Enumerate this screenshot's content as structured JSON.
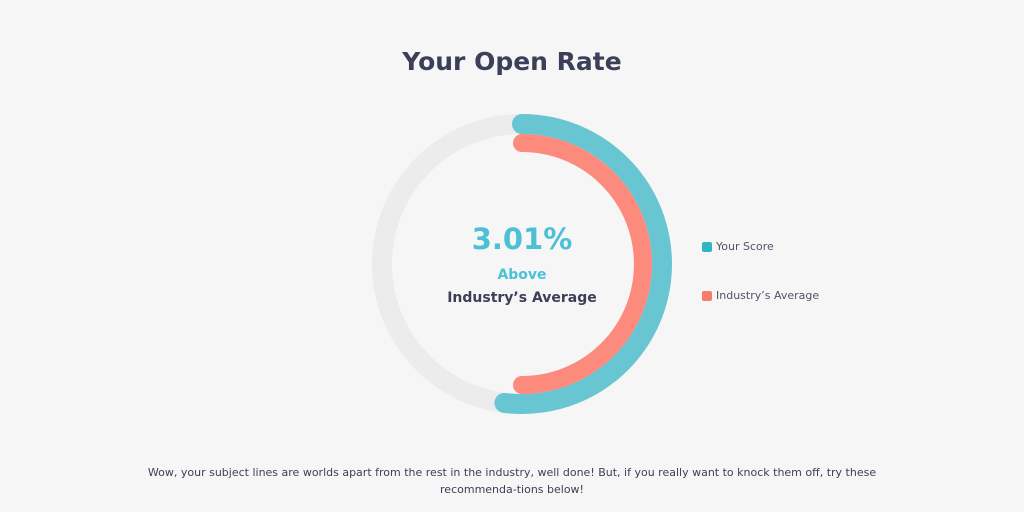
{
  "chart_data": {
    "type": "pie",
    "title": "Your Open Rate",
    "center": {
      "value": "3.01%",
      "line1": "Above",
      "line2": "Industry’s Average"
    },
    "series": [
      {
        "name": "Your Score",
        "value": 0.52,
        "color": "#68c6d3"
      },
      {
        "name": "Industry’s Average",
        "value": 0.5,
        "color": "#fc8b7e"
      }
    ],
    "track_color": "#ececec",
    "legend_position": "right"
  },
  "legend_colors": {
    "your_score": "#30b5c2",
    "industry_average": "#fa7b6c"
  },
  "message": "Wow, your subject lines are worlds apart from the rest in the industry, well done! But, if you really want to knock them off, try these recommenda-tions below!"
}
